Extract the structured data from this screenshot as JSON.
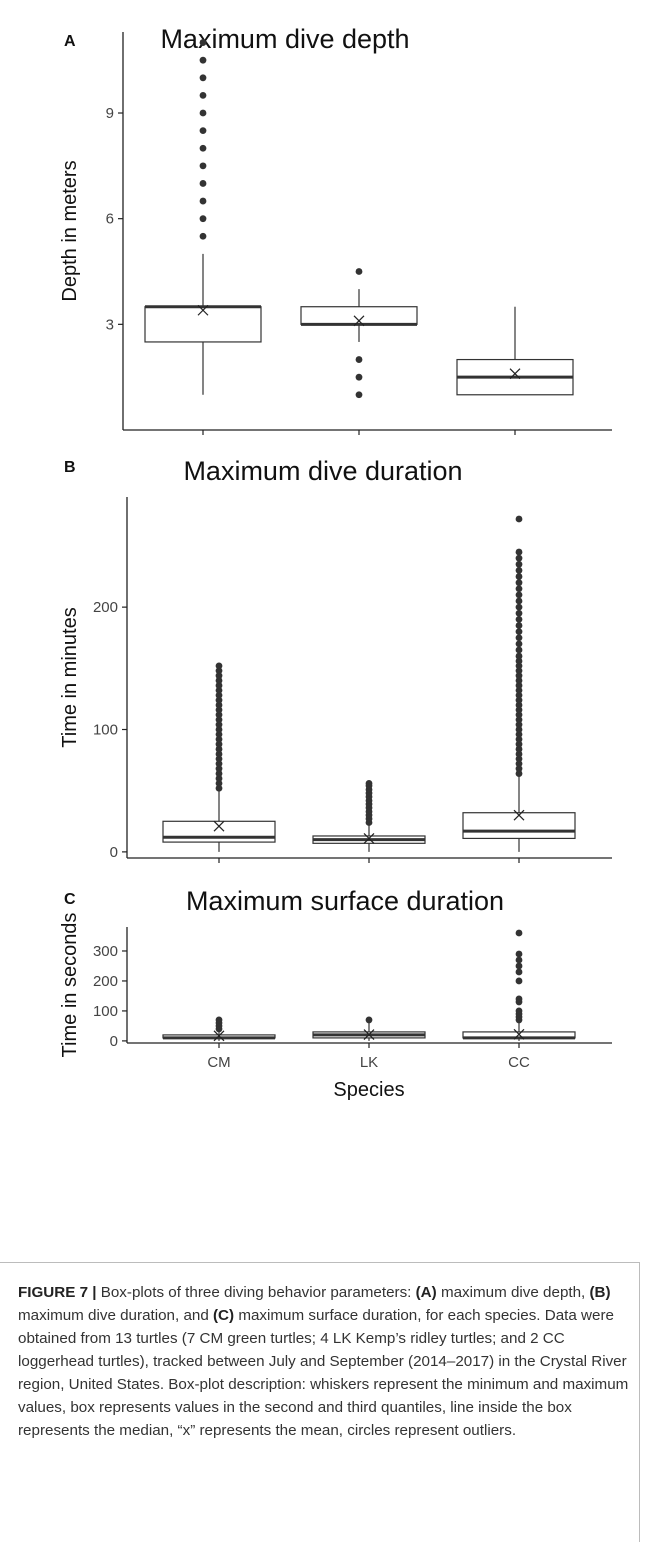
{
  "chart_data": [
    {
      "type": "box",
      "panel": "A",
      "title": "Maximum dive depth",
      "ylabel": "Depth in meters",
      "xlabel": "",
      "ylim": [
        0,
        11.3
      ],
      "yticks": [
        3,
        6,
        9
      ],
      "categories": [
        "CM",
        "LK",
        "CC"
      ],
      "boxes": [
        {
          "category": "CM",
          "min": 1.0,
          "q1": 2.5,
          "median": 3.5,
          "q3": 3.5,
          "max": 5.0,
          "mean": 3.4,
          "outliers": [
            5.5,
            6.0,
            6.5,
            7.0,
            7.5,
            8.0,
            8.5,
            9.0,
            9.5,
            10.0,
            10.5,
            11.0
          ]
        },
        {
          "category": "LK",
          "min": 2.5,
          "q1": 3.0,
          "median": 3.0,
          "q3": 3.5,
          "max": 4.0,
          "mean": 3.1,
          "outliers": [
            1.0,
            1.5,
            2.0,
            4.5
          ]
        },
        {
          "category": "CC",
          "min": 1.0,
          "q1": 1.0,
          "median": 1.5,
          "q3": 2.0,
          "max": 3.5,
          "mean": 1.6,
          "outliers": []
        }
      ]
    },
    {
      "type": "box",
      "panel": "B",
      "title": "Maximum dive duration",
      "ylabel": "Time in minutes",
      "xlabel": "",
      "ylim": [
        -5,
        290
      ],
      "yticks": [
        0,
        100,
        200
      ],
      "categories": [
        "CM",
        "LK",
        "CC"
      ],
      "boxes": [
        {
          "category": "CM",
          "min": 0,
          "q1": 8,
          "median": 12,
          "q3": 25,
          "max": 50,
          "mean": 21,
          "outliers": [
            52,
            56,
            60,
            64,
            68,
            72,
            76,
            80,
            84,
            88,
            92,
            96,
            100,
            104,
            108,
            112,
            116,
            120,
            124,
            128,
            132,
            136,
            140,
            144,
            148,
            152
          ]
        },
        {
          "category": "LK",
          "min": 0,
          "q1": 7,
          "median": 10,
          "q3": 13,
          "max": 22,
          "mean": 11,
          "outliers": [
            24,
            27,
            30,
            33,
            36,
            39,
            42,
            45,
            48,
            51,
            54,
            56
          ]
        },
        {
          "category": "CC",
          "min": 0,
          "q1": 11,
          "median": 17,
          "q3": 32,
          "max": 62,
          "mean": 30,
          "outliers": [
            64,
            68,
            72,
            76,
            80,
            84,
            88,
            92,
            96,
            100,
            104,
            108,
            112,
            116,
            120,
            124,
            128,
            132,
            136,
            140,
            144,
            148,
            152,
            156,
            160,
            165,
            170,
            175,
            180,
            185,
            190,
            195,
            200,
            205,
            210,
            215,
            220,
            225,
            230,
            235,
            240,
            245,
            272
          ]
        }
      ]
    },
    {
      "type": "box",
      "panel": "C",
      "title": "Maximum surface duration",
      "ylabel": "Time in seconds",
      "xlabel": "Species",
      "ylim": [
        -7,
        380
      ],
      "yticks": [
        0,
        100,
        200,
        300
      ],
      "categories": [
        "CM",
        "LK",
        "CC"
      ],
      "boxes": [
        {
          "category": "CM",
          "min": 0,
          "q1": 10,
          "median": 10,
          "q3": 20,
          "max": 30,
          "mean": 17,
          "outliers": [
            40,
            50,
            60,
            70
          ]
        },
        {
          "category": "LK",
          "min": 0,
          "q1": 10,
          "median": 20,
          "q3": 30,
          "max": 60,
          "mean": 21,
          "outliers": [
            70
          ]
        },
        {
          "category": "CC",
          "min": 0,
          "q1": 10,
          "median": 10,
          "q3": 30,
          "max": 60,
          "mean": 22,
          "outliers": [
            70,
            80,
            90,
            100,
            130,
            140,
            200,
            230,
            250,
            270,
            290,
            360
          ]
        }
      ]
    }
  ],
  "caption": {
    "figure_label": "FIGURE 7 |",
    "text_1": " Box-plots of three diving behavior parameters: ",
    "part_a": "(A)",
    "text_2": " maximum dive depth, ",
    "part_b": "(B)",
    "text_3": " maximum dive duration, and ",
    "part_c": "(C)",
    "text_4": " maximum surface duration, for each species. Data were obtained from 13 turtles (7 CM green turtles; 4 LK Kemp’s ridley turtles; and 2 CC loggerhead turtles), tracked between July and September (2014–2017) in the Crystal River region, United States. Box-plot description: whiskers represent the minimum and maximum values, box represents values in the second and third quantiles, line inside the box represents the median, “x” represents the mean, circles represent outliers."
  },
  "colors": {
    "box_fill": "#ffffff",
    "box_stroke": "#333333",
    "median": "#333333",
    "outlier": "#333333",
    "axis": "#222222"
  }
}
